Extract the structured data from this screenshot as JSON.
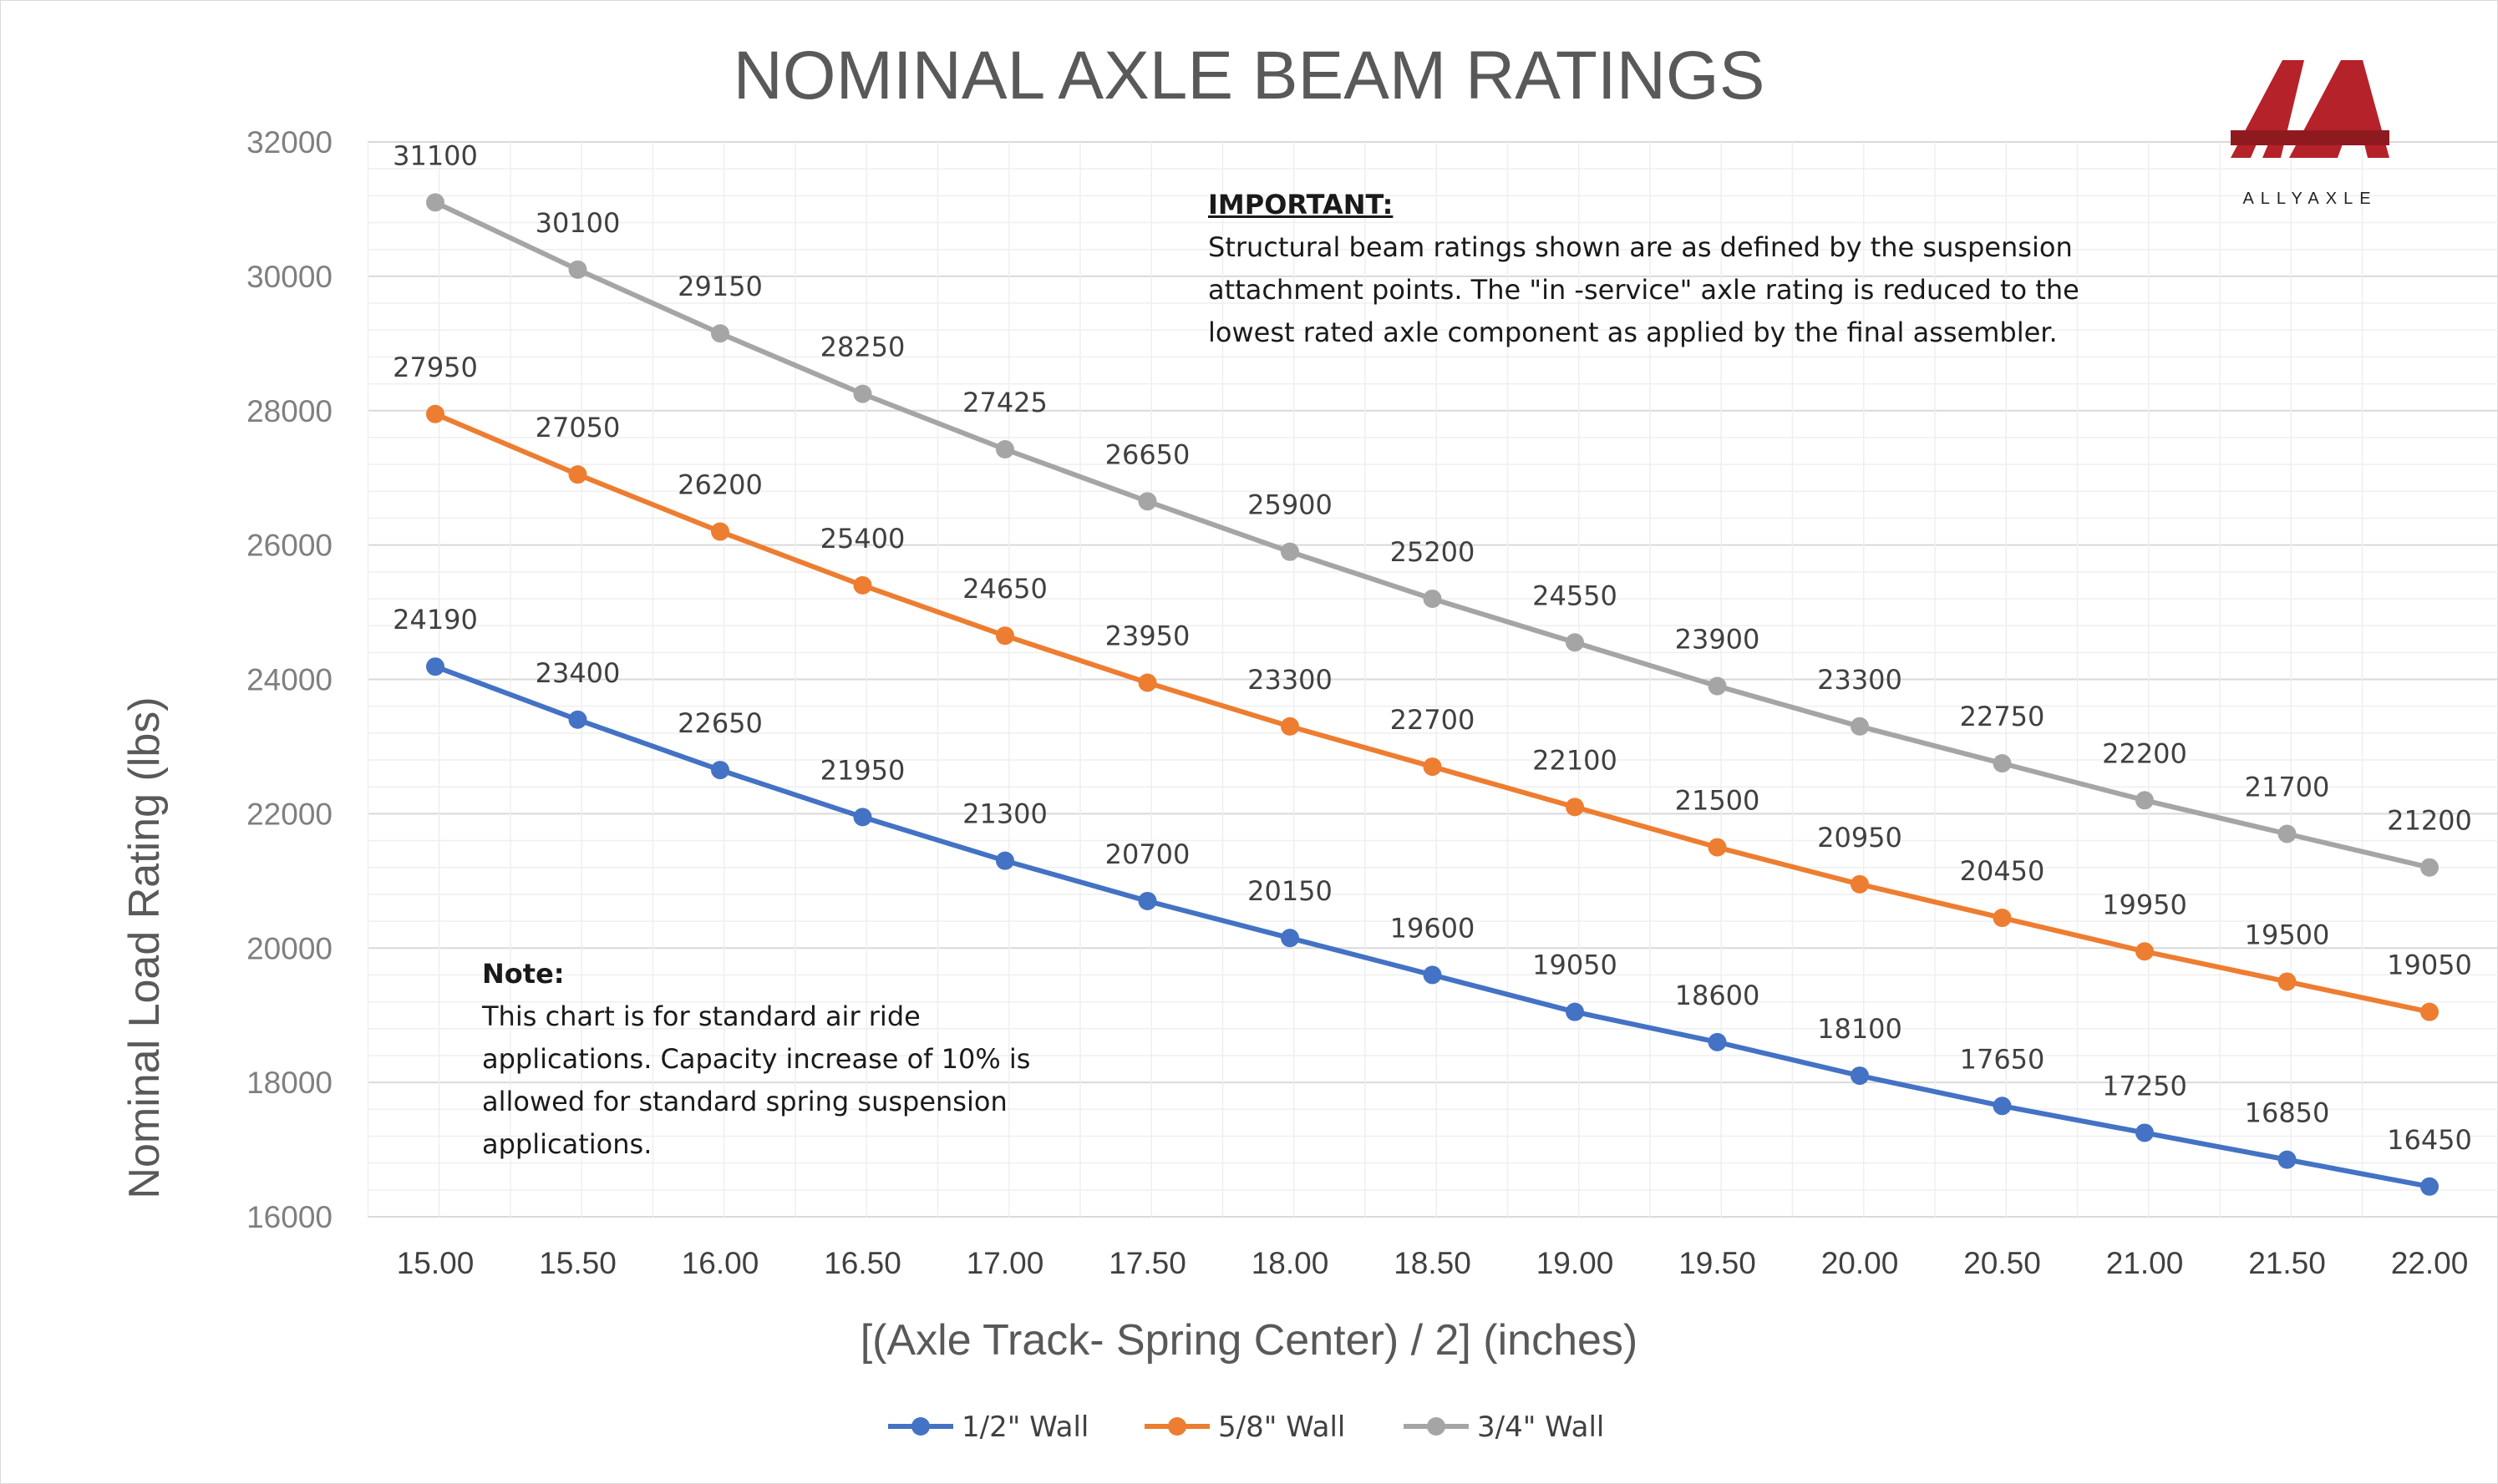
{
  "colors": {
    "series_half": "#4472c4",
    "series_five_eighths": "#ed7d31",
    "series_three_quarter": "#a5a5a5",
    "grid_major": "#d9d9d9",
    "grid_minor": "#efefef",
    "logo_red": "#b5222a"
  },
  "logo": {
    "name": "ALLYAXLE"
  },
  "important": {
    "heading": "IMPORTANT:",
    "lines": [
      "Structural beam ratings shown are as defined by the suspension",
      "attachment points. The \"in -service\" axle rating is reduced to the",
      "lowest rated  axle component as applied by the final assembler."
    ]
  },
  "note": {
    "heading": "Note:",
    "lines": [
      "This chart is for standard air ride",
      "applications. Capacity increase of 10% is",
      "allowed for standard  spring suspension",
      "applications."
    ]
  },
  "chart_data": {
    "type": "line",
    "title": "NOMINAL AXLE BEAM RATINGS",
    "xlabel": "[(Axle Track- Spring Center) / 2]  (inches)",
    "ylabel": "Nominal Load Rating (lbs)",
    "categories": [
      "15.00",
      "15.50",
      "16.00",
      "16.50",
      "17.00",
      "17.50",
      "18.00",
      "18.50",
      "19.00",
      "19.50",
      "20.00",
      "20.50",
      "21.00",
      "21.50",
      "22.00"
    ],
    "ylim": [
      16000,
      32000
    ],
    "yticks": [
      "16000",
      "18000",
      "20000",
      "22000",
      "24000",
      "26000",
      "28000",
      "30000",
      "32000"
    ],
    "grid": true,
    "legend_position": "bottom",
    "series": [
      {
        "name": "1/2\" Wall",
        "color": "#4472c4",
        "values": [
          24190,
          23400,
          22650,
          21950,
          21300,
          20700,
          20150,
          19600,
          19050,
          18600,
          18100,
          17650,
          17250,
          16850,
          16450
        ]
      },
      {
        "name": "5/8\" Wall",
        "color": "#ed7d31",
        "values": [
          27950,
          27050,
          26200,
          25400,
          24650,
          23950,
          23300,
          22700,
          22100,
          21500,
          20950,
          20450,
          19950,
          19500,
          19050
        ]
      },
      {
        "name": "3/4\" Wall",
        "color": "#a5a5a5",
        "values": [
          31100,
          30100,
          29150,
          28250,
          27425,
          26650,
          25900,
          25200,
          24550,
          23900,
          23300,
          22750,
          22200,
          21700,
          21200
        ]
      }
    ]
  }
}
